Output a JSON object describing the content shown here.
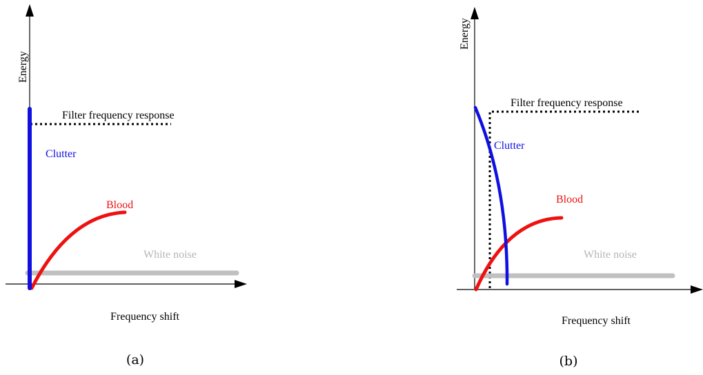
{
  "panels": [
    {
      "id": "a",
      "y_axis_label": "Energy",
      "x_axis_label": "Frequency shift",
      "filter_label": "Filter frequency response",
      "clutter_label": "Clutter",
      "blood_label": "Blood",
      "noise_label": "White noise",
      "caption": "(a)"
    },
    {
      "id": "b",
      "y_axis_label": "Energy",
      "x_axis_label": "Frequency shift",
      "filter_label": "Filter frequency response",
      "clutter_label": "Clutter",
      "blood_label": "Blood",
      "noise_label": "White noise",
      "caption": "(b)"
    }
  ],
  "colors": {
    "clutter": "#1010e0",
    "blood": "#ee1111",
    "noise": "#c0c0c0",
    "filter": "#000000",
    "axis": "#000000"
  }
}
